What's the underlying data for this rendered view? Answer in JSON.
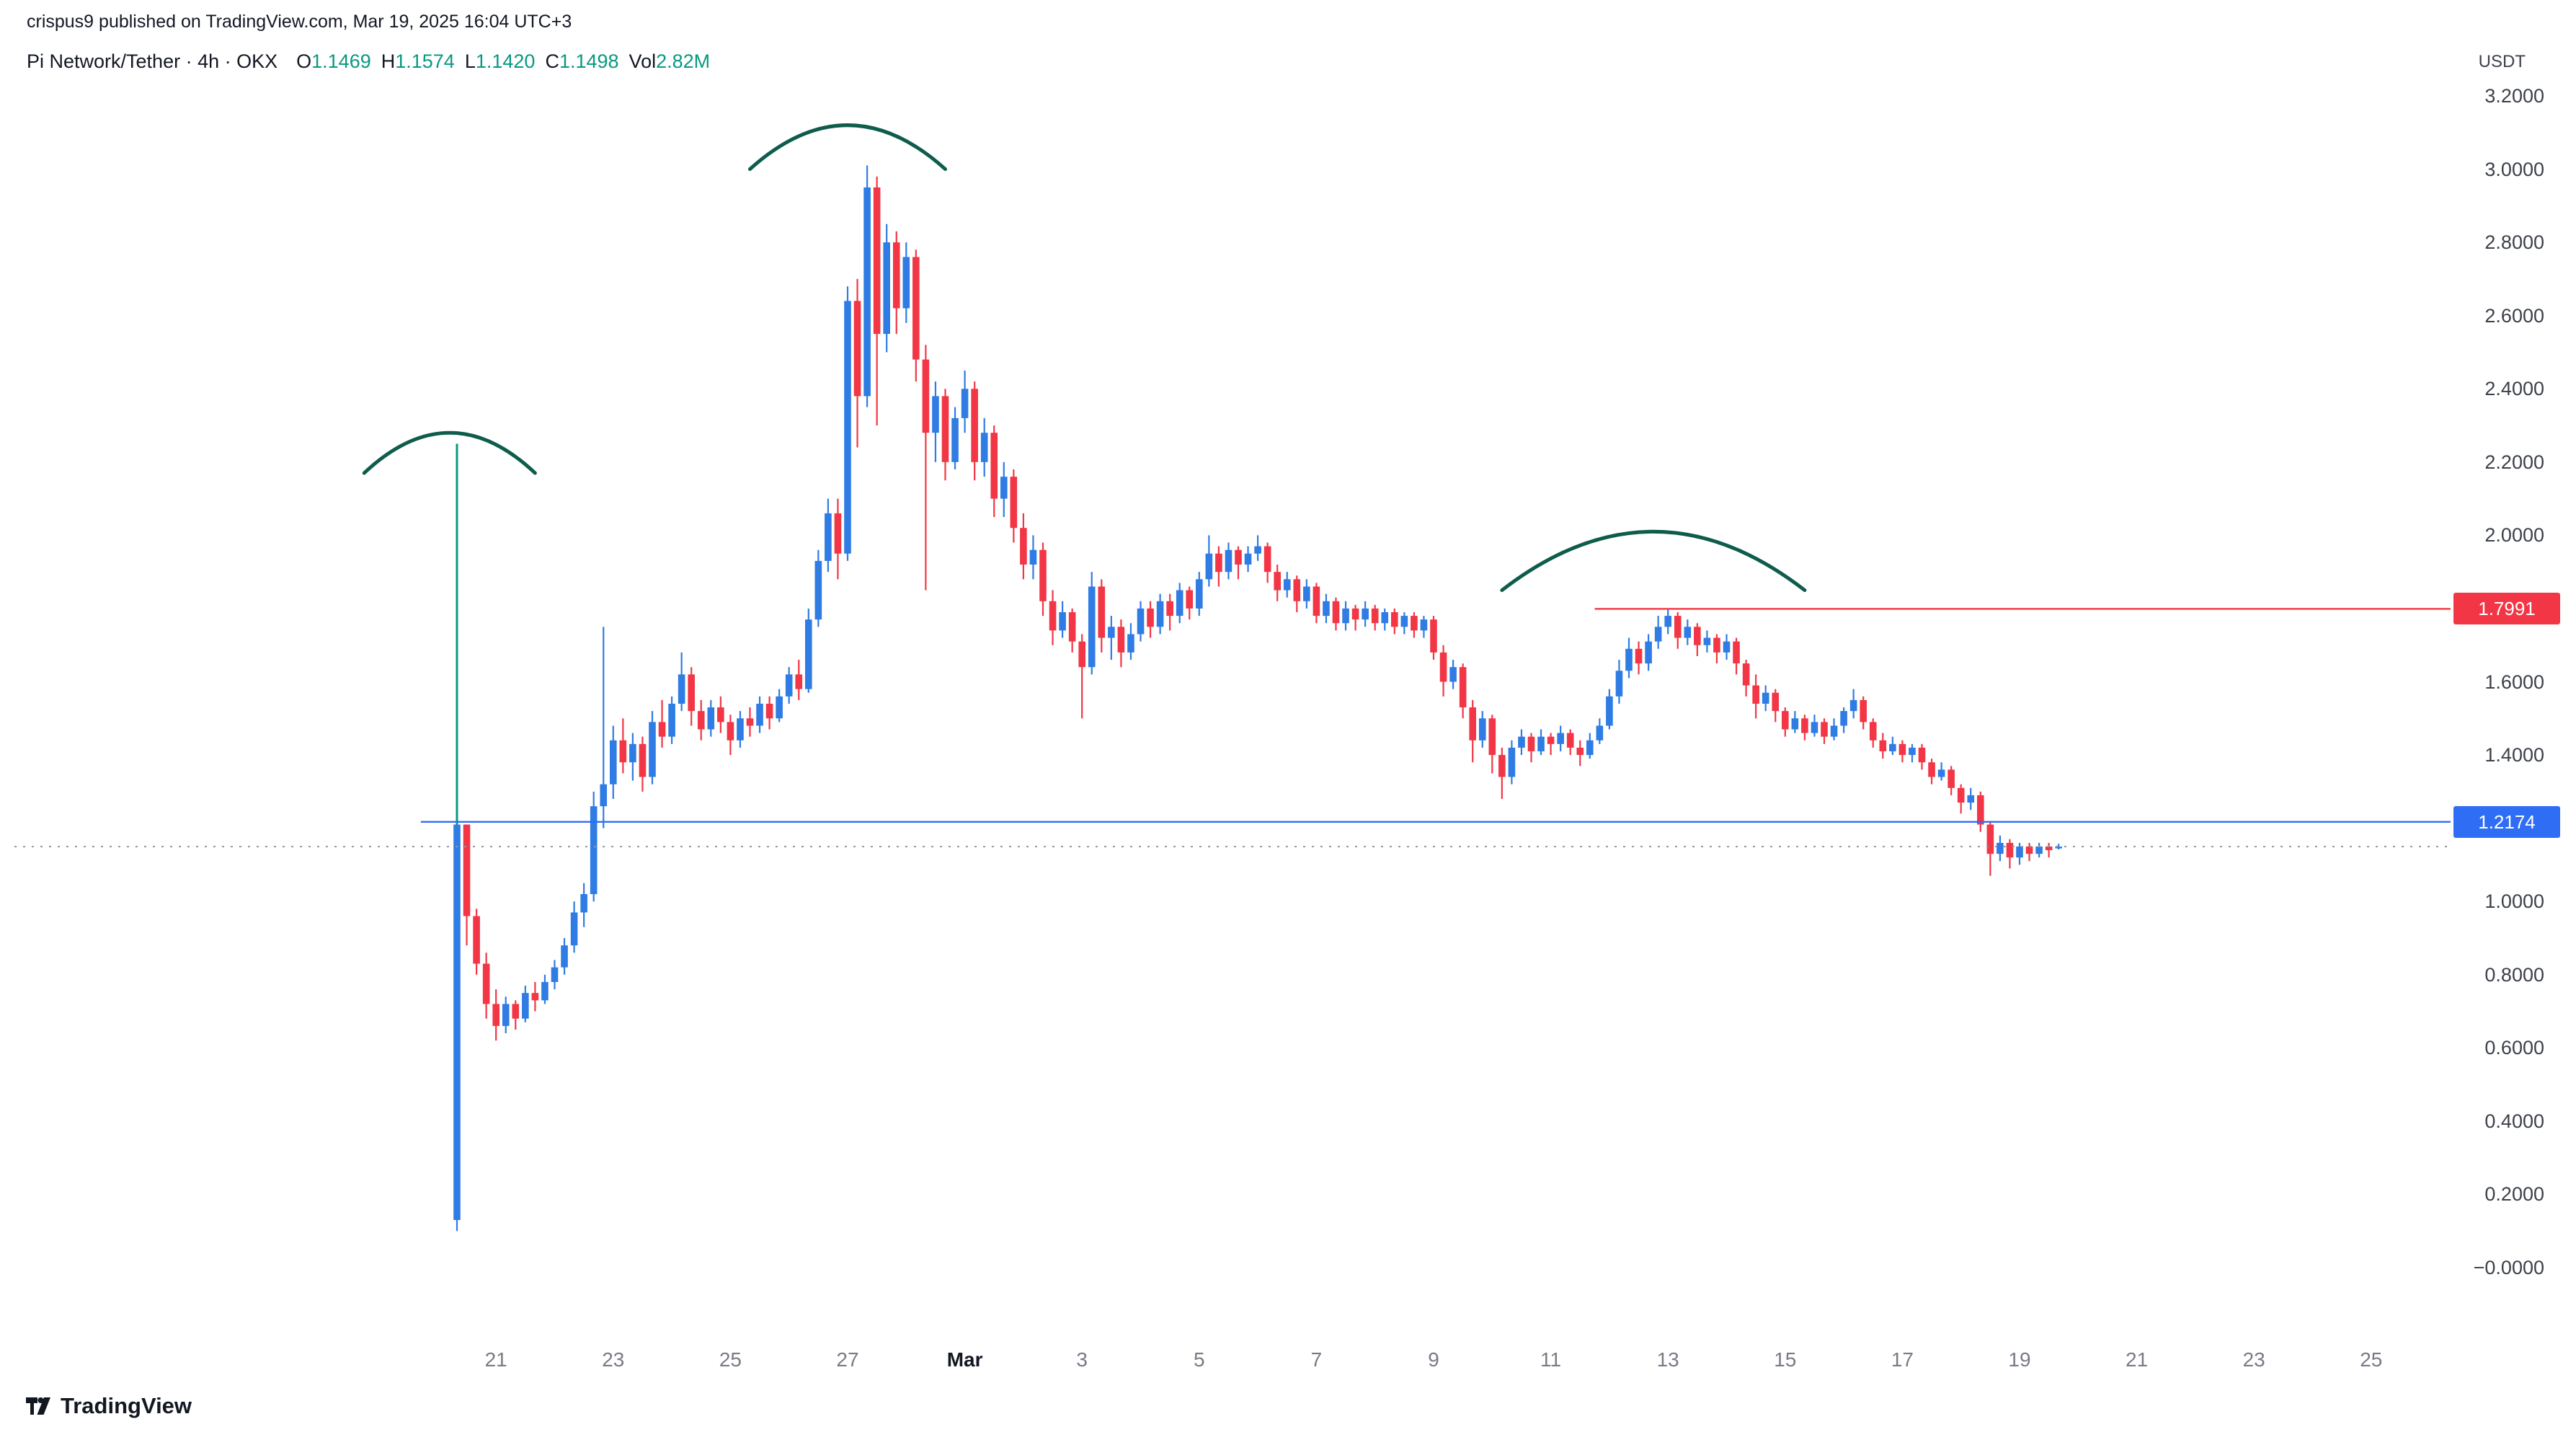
{
  "header": {
    "attribution": "crispus9 published on TradingView.com, Mar 19, 2025 16:04 UTC+3"
  },
  "legend": {
    "title": "Pi Network/Tether · 4h · OKX",
    "ohlc": [
      {
        "label": "O",
        "value": "1.1469"
      },
      {
        "label": "H",
        "value": "1.1574"
      },
      {
        "label": "L",
        "value": "1.1420"
      },
      {
        "label": "C",
        "value": "1.1498"
      },
      {
        "label": "Vol",
        "value": "2.82M"
      }
    ]
  },
  "axis": {
    "currency": "USDT",
    "price_ticks": [
      {
        "price": 3.2,
        "label": "3.2000"
      },
      {
        "price": 3.0,
        "label": "3.0000"
      },
      {
        "price": 2.8,
        "label": "2.8000"
      },
      {
        "price": 2.6,
        "label": "2.6000"
      },
      {
        "price": 2.4,
        "label": "2.4000"
      },
      {
        "price": 2.2,
        "label": "2.2000"
      },
      {
        "price": 2.0,
        "label": "2.0000"
      },
      {
        "price": 1.6,
        "label": "1.6000"
      },
      {
        "price": 1.4,
        "label": "1.4000"
      },
      {
        "price": 1.0,
        "label": "1.0000"
      },
      {
        "price": 0.8,
        "label": "0.8000"
      },
      {
        "price": 0.6,
        "label": "0.6000"
      },
      {
        "price": 0.4,
        "label": "0.4000"
      },
      {
        "price": 0.2,
        "label": "0.2000"
      },
      {
        "price": 0.0,
        "label": "−0.0000"
      }
    ],
    "time_ticks": [
      {
        "label": "21",
        "idx": 4
      },
      {
        "label": "23",
        "idx": 16
      },
      {
        "label": "25",
        "idx": 28
      },
      {
        "label": "27",
        "idx": 40
      },
      {
        "label": "Mar",
        "idx": 52,
        "bold": true
      },
      {
        "label": "3",
        "idx": 64
      },
      {
        "label": "5",
        "idx": 76
      },
      {
        "label": "7",
        "idx": 88
      },
      {
        "label": "9",
        "idx": 100
      },
      {
        "label": "11",
        "idx": 112
      },
      {
        "label": "13",
        "idx": 124
      },
      {
        "label": "15",
        "idx": 136
      },
      {
        "label": "17",
        "idx": 148
      },
      {
        "label": "19",
        "idx": 160
      },
      {
        "label": "21",
        "idx": 172
      },
      {
        "label": "23",
        "idx": 184
      },
      {
        "label": "25",
        "idx": 196
      }
    ]
  },
  "levels": {
    "resistance": {
      "price": 1.7991,
      "label": "1.7991",
      "start_idx": 116.5
    },
    "support": {
      "price": 1.2174,
      "label": "1.2174",
      "start_idx": -3.7
    },
    "last_price": {
      "price": 1.1498
    }
  },
  "annotations": {
    "arcs": [
      {
        "i1": -9.5,
        "i2": 8,
        "apex_price": 2.28,
        "end_price": 2.17
      },
      {
        "i1": 30,
        "i2": 50,
        "apex_price": 3.12,
        "end_price": 3.0
      },
      {
        "i1": 107,
        "i2": 138,
        "apex_price": 2.01,
        "end_price": 1.85
      }
    ],
    "vertical_line": {
      "idx": 0,
      "from_price": 2.25,
      "to_price": 1.21
    }
  },
  "colors": {
    "up": "#2e7ce4",
    "down": "#f23645",
    "accent_green": "#089981",
    "level_red": "#f23645",
    "level_blue": "#2f6df5",
    "arc_green": "#0e5c4b",
    "vline_green": "#089981",
    "last_price_gray": "#9598a1"
  },
  "branding": {
    "name": "TradingView"
  },
  "chart_data": {
    "type": "candlestick",
    "title": "Pi Network/Tether (PI/USDT)",
    "exchange": "OKX",
    "interval": "4h",
    "start": "2025-02-20 08:00 UTC+3",
    "end": "2025-03-19 16:00 UTC+3",
    "price_axis_range": [
      -0.0,
      3.2
    ],
    "visible_date_range": "Feb 20 - Mar 25",
    "grid": false,
    "last_candle_ohlc": {
      "open": 1.1469,
      "high": 1.1574,
      "low": 1.142,
      "close": 1.1498,
      "volume": "2.82M"
    },
    "candles_format": [
      "open",
      "high",
      "low",
      "close"
    ],
    "candles": [
      [
        0.13,
        2.2,
        0.1,
        1.21
      ],
      [
        1.21,
        1.21,
        0.88,
        0.96
      ],
      [
        0.96,
        0.98,
        0.8,
        0.83
      ],
      [
        0.83,
        0.86,
        0.68,
        0.72
      ],
      [
        0.72,
        0.76,
        0.62,
        0.66
      ],
      [
        0.66,
        0.74,
        0.64,
        0.72
      ],
      [
        0.72,
        0.73,
        0.65,
        0.68
      ],
      [
        0.68,
        0.77,
        0.67,
        0.75
      ],
      [
        0.75,
        0.78,
        0.7,
        0.73
      ],
      [
        0.73,
        0.8,
        0.72,
        0.78
      ],
      [
        0.78,
        0.84,
        0.76,
        0.82
      ],
      [
        0.82,
        0.9,
        0.8,
        0.88
      ],
      [
        0.88,
        1.0,
        0.86,
        0.97
      ],
      [
        0.97,
        1.05,
        0.93,
        1.02
      ],
      [
        1.02,
        1.3,
        1.0,
        1.26
      ],
      [
        1.26,
        1.75,
        1.2,
        1.32
      ],
      [
        1.32,
        1.48,
        1.28,
        1.44
      ],
      [
        1.44,
        1.5,
        1.35,
        1.38
      ],
      [
        1.38,
        1.46,
        1.33,
        1.43
      ],
      [
        1.43,
        1.45,
        1.3,
        1.34
      ],
      [
        1.34,
        1.52,
        1.32,
        1.49
      ],
      [
        1.49,
        1.55,
        1.42,
        1.45
      ],
      [
        1.45,
        1.56,
        1.43,
        1.54
      ],
      [
        1.54,
        1.68,
        1.52,
        1.62
      ],
      [
        1.62,
        1.64,
        1.48,
        1.52
      ],
      [
        1.52,
        1.55,
        1.44,
        1.47
      ],
      [
        1.47,
        1.55,
        1.45,
        1.53
      ],
      [
        1.53,
        1.56,
        1.46,
        1.49
      ],
      [
        1.49,
        1.51,
        1.4,
        1.44
      ],
      [
        1.44,
        1.52,
        1.42,
        1.5
      ],
      [
        1.5,
        1.53,
        1.45,
        1.48
      ],
      [
        1.48,
        1.56,
        1.46,
        1.54
      ],
      [
        1.54,
        1.56,
        1.47,
        1.5
      ],
      [
        1.5,
        1.58,
        1.49,
        1.56
      ],
      [
        1.56,
        1.64,
        1.54,
        1.62
      ],
      [
        1.62,
        1.66,
        1.55,
        1.58
      ],
      [
        1.58,
        1.8,
        1.57,
        1.77
      ],
      [
        1.77,
        1.96,
        1.75,
        1.93
      ],
      [
        1.93,
        2.1,
        1.9,
        2.06
      ],
      [
        2.06,
        2.1,
        1.88,
        1.95
      ],
      [
        1.95,
        2.68,
        1.93,
        2.64
      ],
      [
        2.64,
        2.7,
        2.24,
        2.38
      ],
      [
        2.38,
        3.01,
        2.35,
        2.95
      ],
      [
        2.95,
        2.98,
        2.3,
        2.55
      ],
      [
        2.55,
        2.85,
        2.5,
        2.8
      ],
      [
        2.8,
        2.83,
        2.55,
        2.62
      ],
      [
        2.62,
        2.8,
        2.58,
        2.76
      ],
      [
        2.76,
        2.78,
        2.42,
        2.48
      ],
      [
        2.48,
        2.52,
        1.85,
        2.28
      ],
      [
        2.28,
        2.42,
        2.2,
        2.38
      ],
      [
        2.38,
        2.4,
        2.15,
        2.2
      ],
      [
        2.2,
        2.35,
        2.18,
        2.32
      ],
      [
        2.32,
        2.45,
        2.28,
        2.4
      ],
      [
        2.4,
        2.42,
        2.15,
        2.2
      ],
      [
        2.2,
        2.32,
        2.16,
        2.28
      ],
      [
        2.28,
        2.3,
        2.05,
        2.1
      ],
      [
        2.1,
        2.2,
        2.05,
        2.16
      ],
      [
        2.16,
        2.18,
        1.98,
        2.02
      ],
      [
        2.02,
        2.06,
        1.88,
        1.92
      ],
      [
        1.92,
        2.0,
        1.88,
        1.96
      ],
      [
        1.96,
        1.98,
        1.78,
        1.82
      ],
      [
        1.82,
        1.85,
        1.7,
        1.74
      ],
      [
        1.74,
        1.82,
        1.72,
        1.79
      ],
      [
        1.79,
        1.8,
        1.68,
        1.71
      ],
      [
        1.71,
        1.73,
        1.5,
        1.64
      ],
      [
        1.64,
        1.9,
        1.62,
        1.86
      ],
      [
        1.86,
        1.88,
        1.68,
        1.72
      ],
      [
        1.72,
        1.78,
        1.66,
        1.75
      ],
      [
        1.75,
        1.77,
        1.64,
        1.68
      ],
      [
        1.68,
        1.76,
        1.66,
        1.73
      ],
      [
        1.73,
        1.82,
        1.71,
        1.8
      ],
      [
        1.8,
        1.82,
        1.72,
        1.75
      ],
      [
        1.75,
        1.84,
        1.73,
        1.82
      ],
      [
        1.82,
        1.84,
        1.74,
        1.78
      ],
      [
        1.78,
        1.87,
        1.76,
        1.85
      ],
      [
        1.85,
        1.86,
        1.77,
        1.8
      ],
      [
        1.8,
        1.9,
        1.78,
        1.88
      ],
      [
        1.88,
        2.0,
        1.86,
        1.95
      ],
      [
        1.95,
        1.97,
        1.86,
        1.9
      ],
      [
        1.9,
        1.98,
        1.88,
        1.96
      ],
      [
        1.96,
        1.97,
        1.88,
        1.92
      ],
      [
        1.92,
        1.97,
        1.9,
        1.95
      ],
      [
        1.95,
        2.0,
        1.93,
        1.97
      ],
      [
        1.97,
        1.98,
        1.87,
        1.9
      ],
      [
        1.9,
        1.92,
        1.82,
        1.85
      ],
      [
        1.85,
        1.9,
        1.83,
        1.88
      ],
      [
        1.88,
        1.89,
        1.79,
        1.82
      ],
      [
        1.82,
        1.88,
        1.8,
        1.86
      ],
      [
        1.86,
        1.87,
        1.76,
        1.78
      ],
      [
        1.78,
        1.84,
        1.76,
        1.82
      ],
      [
        1.82,
        1.83,
        1.74,
        1.76
      ],
      [
        1.76,
        1.82,
        1.74,
        1.8
      ],
      [
        1.8,
        1.81,
        1.74,
        1.77
      ],
      [
        1.77,
        1.82,
        1.75,
        1.8
      ],
      [
        1.8,
        1.81,
        1.74,
        1.76
      ],
      [
        1.76,
        1.8,
        1.74,
        1.79
      ],
      [
        1.79,
        1.8,
        1.73,
        1.75
      ],
      [
        1.75,
        1.79,
        1.73,
        1.78
      ],
      [
        1.78,
        1.79,
        1.72,
        1.74
      ],
      [
        1.74,
        1.78,
        1.72,
        1.77
      ],
      [
        1.77,
        1.78,
        1.66,
        1.68
      ],
      [
        1.68,
        1.7,
        1.56,
        1.6
      ],
      [
        1.6,
        1.66,
        1.58,
        1.64
      ],
      [
        1.64,
        1.65,
        1.5,
        1.53
      ],
      [
        1.53,
        1.55,
        1.38,
        1.44
      ],
      [
        1.44,
        1.52,
        1.42,
        1.5
      ],
      [
        1.5,
        1.51,
        1.35,
        1.4
      ],
      [
        1.4,
        1.42,
        1.28,
        1.34
      ],
      [
        1.34,
        1.44,
        1.32,
        1.42
      ],
      [
        1.42,
        1.47,
        1.4,
        1.45
      ],
      [
        1.45,
        1.46,
        1.38,
        1.41
      ],
      [
        1.41,
        1.47,
        1.4,
        1.45
      ],
      [
        1.45,
        1.46,
        1.4,
        1.43
      ],
      [
        1.43,
        1.48,
        1.41,
        1.46
      ],
      [
        1.46,
        1.47,
        1.4,
        1.42
      ],
      [
        1.42,
        1.44,
        1.37,
        1.4
      ],
      [
        1.4,
        1.46,
        1.39,
        1.44
      ],
      [
        1.44,
        1.5,
        1.43,
        1.48
      ],
      [
        1.48,
        1.58,
        1.47,
        1.56
      ],
      [
        1.56,
        1.66,
        1.54,
        1.63
      ],
      [
        1.63,
        1.72,
        1.61,
        1.69
      ],
      [
        1.69,
        1.71,
        1.62,
        1.65
      ],
      [
        1.65,
        1.73,
        1.63,
        1.71
      ],
      [
        1.71,
        1.78,
        1.69,
        1.75
      ],
      [
        1.75,
        1.8,
        1.73,
        1.78
      ],
      [
        1.78,
        1.79,
        1.69,
        1.72
      ],
      [
        1.72,
        1.77,
        1.7,
        1.75
      ],
      [
        1.75,
        1.76,
        1.67,
        1.7
      ],
      [
        1.7,
        1.74,
        1.68,
        1.72
      ],
      [
        1.72,
        1.73,
        1.65,
        1.68
      ],
      [
        1.68,
        1.73,
        1.66,
        1.71
      ],
      [
        1.71,
        1.72,
        1.62,
        1.65
      ],
      [
        1.65,
        1.66,
        1.56,
        1.59
      ],
      [
        1.59,
        1.62,
        1.5,
        1.54
      ],
      [
        1.54,
        1.59,
        1.52,
        1.57
      ],
      [
        1.57,
        1.58,
        1.49,
        1.52
      ],
      [
        1.52,
        1.53,
        1.45,
        1.47
      ],
      [
        1.47,
        1.52,
        1.46,
        1.5
      ],
      [
        1.5,
        1.51,
        1.44,
        1.46
      ],
      [
        1.46,
        1.51,
        1.45,
        1.49
      ],
      [
        1.49,
        1.5,
        1.43,
        1.45
      ],
      [
        1.45,
        1.5,
        1.44,
        1.48
      ],
      [
        1.48,
        1.53,
        1.46,
        1.52
      ],
      [
        1.52,
        1.58,
        1.5,
        1.55
      ],
      [
        1.55,
        1.56,
        1.47,
        1.49
      ],
      [
        1.49,
        1.5,
        1.42,
        1.44
      ],
      [
        1.44,
        1.46,
        1.39,
        1.41
      ],
      [
        1.41,
        1.45,
        1.4,
        1.43
      ],
      [
        1.43,
        1.44,
        1.38,
        1.4
      ],
      [
        1.4,
        1.43,
        1.38,
        1.42
      ],
      [
        1.42,
        1.43,
        1.36,
        1.38
      ],
      [
        1.38,
        1.39,
        1.32,
        1.34
      ],
      [
        1.34,
        1.38,
        1.33,
        1.36
      ],
      [
        1.36,
        1.37,
        1.29,
        1.31
      ],
      [
        1.31,
        1.32,
        1.24,
        1.27
      ],
      [
        1.27,
        1.31,
        1.25,
        1.29
      ],
      [
        1.29,
        1.3,
        1.19,
        1.21
      ],
      [
        1.21,
        1.22,
        1.07,
        1.13
      ],
      [
        1.13,
        1.18,
        1.11,
        1.16
      ],
      [
        1.16,
        1.17,
        1.09,
        1.12
      ],
      [
        1.12,
        1.16,
        1.1,
        1.15
      ],
      [
        1.15,
        1.16,
        1.11,
        1.13
      ],
      [
        1.13,
        1.16,
        1.12,
        1.15
      ],
      [
        1.15,
        1.16,
        1.12,
        1.14
      ],
      [
        1.1469,
        1.1574,
        1.142,
        1.1498
      ]
    ]
  }
}
